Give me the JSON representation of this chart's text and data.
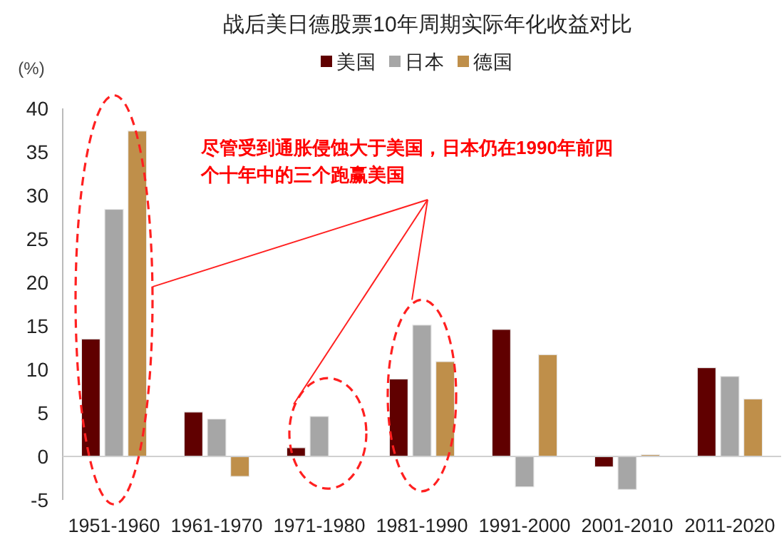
{
  "chart_data": {
    "type": "bar",
    "title": "战后美日德股票10年周期实际年化收益对比",
    "ylabel": "(%)",
    "categories": [
      "1951-1960",
      "1961-1970",
      "1971-1980",
      "1981-1990",
      "1991-2000",
      "2001-2010",
      "2011-2020"
    ],
    "series": [
      {
        "name": "美国",
        "color": "#600000",
        "values": [
          13.5,
          5.1,
          1.0,
          8.9,
          14.6,
          -1.2,
          10.2
        ]
      },
      {
        "name": "日本",
        "color": "#a6a6a6",
        "values": [
          28.4,
          4.3,
          4.6,
          15.1,
          -3.5,
          -3.8,
          9.2
        ]
      },
      {
        "name": "德国",
        "color": "#bf8f4a",
        "values": [
          37.4,
          -2.3,
          null,
          10.9,
          11.7,
          0.2,
          6.6
        ]
      }
    ],
    "ylim": [
      -5,
      40
    ],
    "yticks": [
      -5,
      0,
      5,
      10,
      15,
      20,
      25,
      30,
      35,
      40
    ],
    "legend": "top",
    "annotations": [
      "尽管受到通胀侵蚀大于美国，日本仍在1990年前四个十年中的三个跑赢美国"
    ]
  }
}
